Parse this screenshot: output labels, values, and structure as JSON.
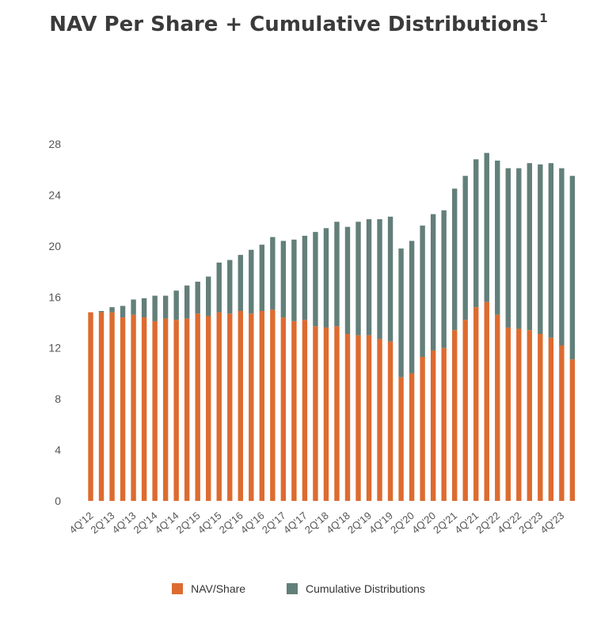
{
  "chart_data": {
    "type": "bar",
    "stacked": true,
    "title": "NAV Per Share + Cumulative Distributions",
    "title_footnote": "1",
    "yticks": [
      0,
      4,
      8,
      12,
      16,
      20,
      24,
      28
    ],
    "ylim": [
      0,
      28
    ],
    "grid": false,
    "legend_position": "bottom",
    "colors": {
      "nav": "#DD6B30",
      "dist": "#637F79"
    },
    "categories": [
      "4Q'12",
      "1Q'13",
      "2Q'13",
      "3Q'13",
      "4Q'13",
      "1Q'14",
      "2Q'14",
      "3Q'14",
      "4Q'14",
      "1Q'15",
      "2Q'15",
      "3Q'15",
      "4Q'15",
      "1Q'16",
      "2Q'16",
      "3Q'16",
      "4Q'16",
      "1Q'17",
      "2Q'17",
      "3Q'17",
      "4Q'17",
      "1Q'18",
      "2Q'18",
      "3Q'18",
      "4Q'18",
      "1Q'19",
      "2Q'19",
      "3Q'19",
      "4Q'19",
      "1Q'20",
      "2Q'20",
      "3Q'20",
      "4Q'20",
      "1Q'21",
      "2Q'21",
      "3Q'21",
      "4Q'21",
      "1Q'22",
      "2Q'22",
      "3Q'22",
      "4Q'22",
      "1Q'23",
      "2Q'23",
      "3Q'23",
      "4Q'23",
      "1Q'24"
    ],
    "xtick_labels": [
      "4Q'12",
      "2Q'13",
      "4Q'13",
      "2Q'14",
      "4Q'14",
      "2Q'15",
      "4Q'15",
      "2Q'16",
      "4Q'16",
      "2Q'17",
      "4Q'17",
      "2Q'18",
      "4Q'18",
      "2Q'19",
      "4Q'19",
      "2Q'20",
      "4Q'20",
      "2Q'21",
      "4Q'21",
      "2Q'22",
      "4Q'22",
      "2Q'23",
      "4Q'23"
    ],
    "series": [
      {
        "name": "NAV/Share",
        "values": [
          14.8,
          14.8,
          14.8,
          14.4,
          14.6,
          14.4,
          14.1,
          14.3,
          14.2,
          14.3,
          14.7,
          14.5,
          14.8,
          14.7,
          14.9,
          14.7,
          14.9,
          15.0,
          14.4,
          14.1,
          14.2,
          13.7,
          13.6,
          13.7,
          13.1,
          13.0,
          13.0,
          12.7,
          12.5,
          9.7,
          10.0,
          11.3,
          11.8,
          12.0,
          13.4,
          14.2,
          15.2,
          15.6,
          14.6,
          13.6,
          13.5,
          13.4,
          13.1,
          12.8,
          12.2,
          11.1
        ]
      },
      {
        "name": "Cumulative Distributions",
        "values": [
          0.0,
          0.1,
          0.4,
          0.9,
          1.2,
          1.5,
          2.0,
          1.8,
          2.3,
          2.6,
          2.5,
          3.1,
          3.9,
          4.2,
          4.4,
          5.0,
          5.2,
          5.7,
          6.0,
          6.4,
          6.6,
          7.4,
          7.8,
          8.2,
          8.4,
          8.9,
          9.1,
          9.4,
          9.8,
          10.1,
          10.4,
          10.3,
          10.7,
          10.8,
          11.1,
          11.3,
          11.6,
          11.7,
          12.1,
          12.5,
          12.6,
          13.1,
          13.3,
          13.7,
          13.9,
          14.4
        ]
      }
    ]
  },
  "legend": [
    {
      "label": "NAV/Share",
      "color": "#DD6B30"
    },
    {
      "label": "Cumulative Distributions",
      "color": "#637F79"
    }
  ]
}
